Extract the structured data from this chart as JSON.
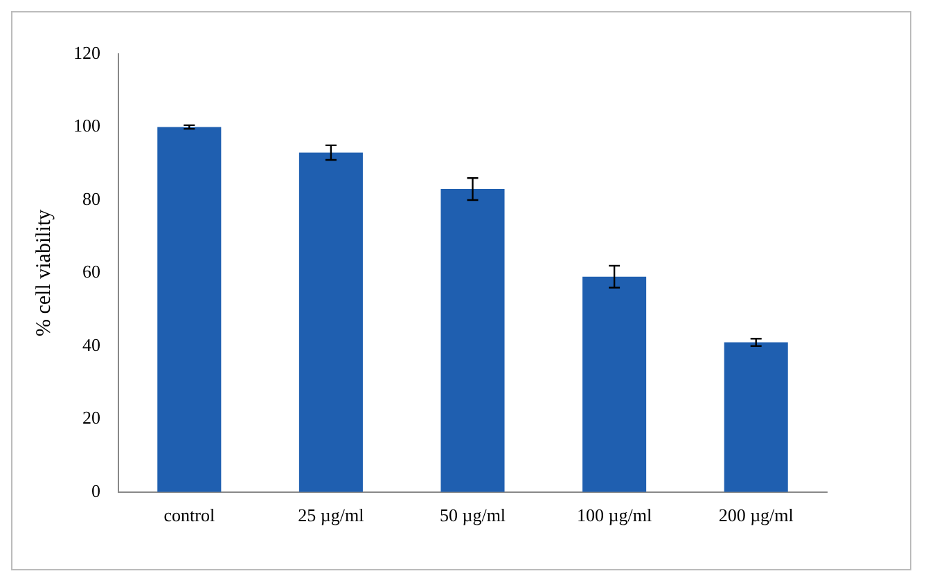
{
  "chart_data": {
    "type": "bar",
    "ylabel": "% cell viability",
    "categories": [
      "control",
      "25 µg/ml",
      "50 µg/ml",
      "100 µg/ml",
      "200 µg/ml"
    ],
    "values": [
      100,
      93,
      83,
      59,
      41
    ],
    "errors": [
      0.5,
      2,
      3,
      3,
      1
    ],
    "color": "#1f5fb0",
    "ylim": [
      0,
      120
    ],
    "yticks": [
      0,
      20,
      40,
      60,
      80,
      100,
      120
    ],
    "grid": false,
    "legend": false
  }
}
